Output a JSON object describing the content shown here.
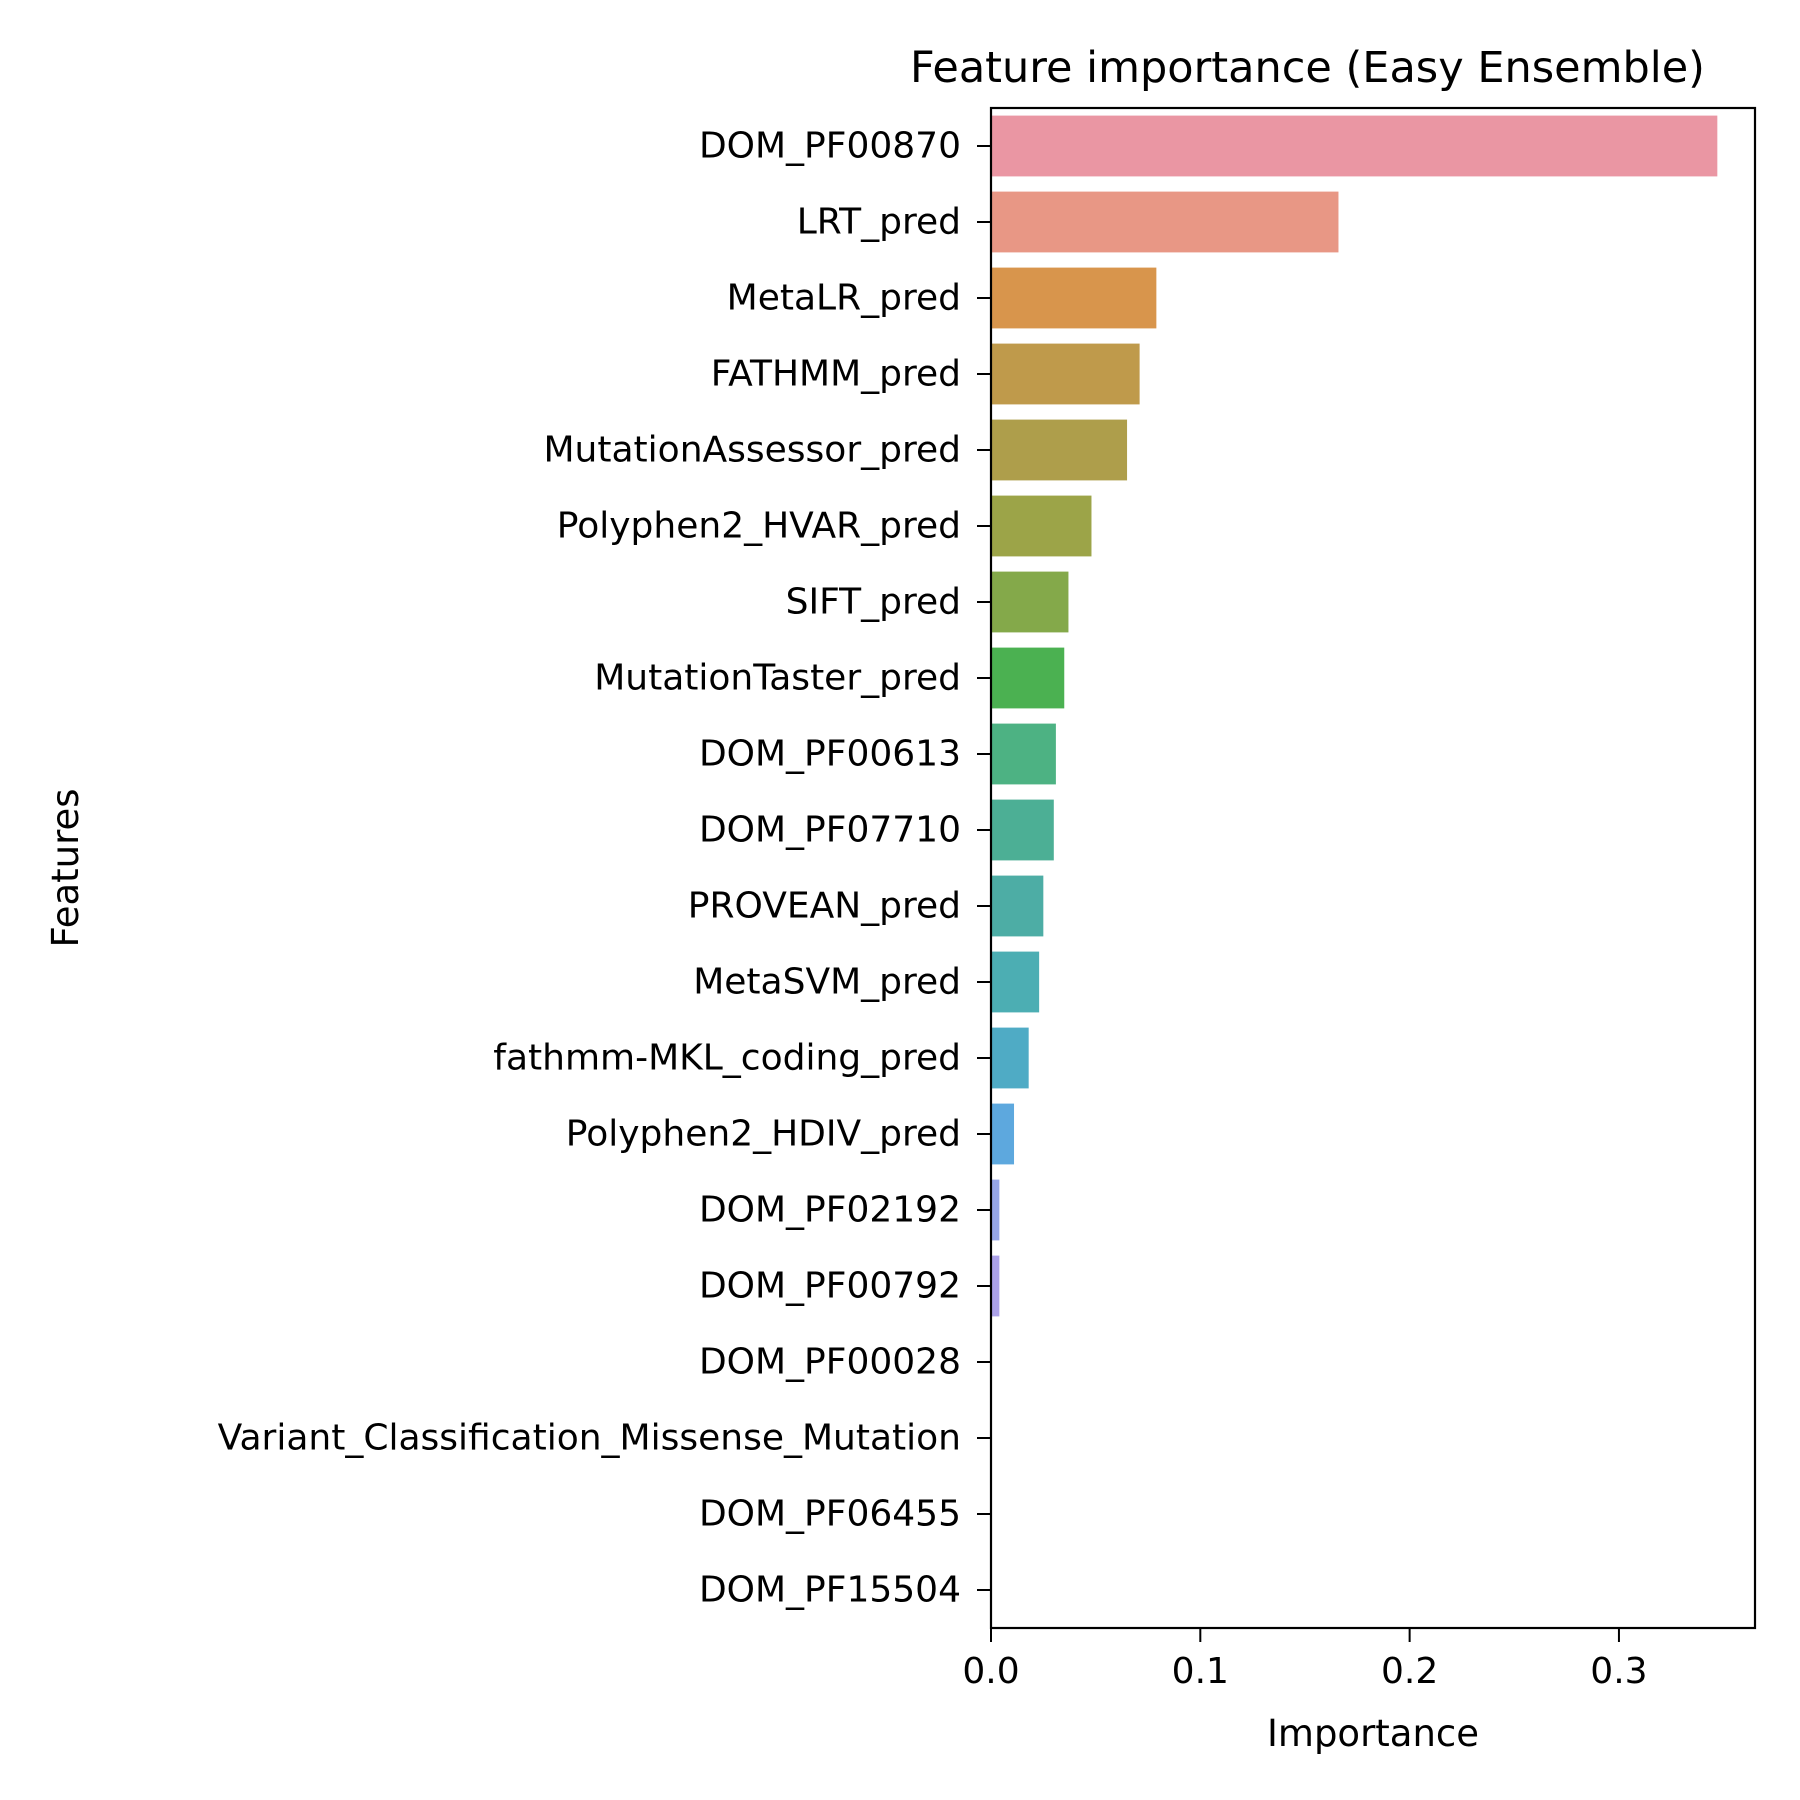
{
  "chart_data": {
    "type": "bar",
    "orientation": "horizontal",
    "title": "Feature importance (Easy Ensemble)",
    "xlabel": "Importance",
    "ylabel": "Features",
    "xlim": [
      0,
      0.365
    ],
    "xticks": [
      0.0,
      0.1,
      0.2,
      0.3
    ],
    "xtick_labels": [
      "0.0",
      "0.1",
      "0.2",
      "0.3"
    ],
    "grid": false,
    "legend": "none",
    "categories": [
      "DOM_PF00870",
      "LRT_pred",
      "MetaLR_pred",
      "FATHMM_pred",
      "MutationAssessor_pred",
      "Polyphen2_HVAR_pred",
      "SIFT_pred",
      "MutationTaster_pred",
      "DOM_PF00613",
      "DOM_PF07710",
      "PROVEAN_pred",
      "MetaSVM_pred",
      "fathmm-MKL_coding_pred",
      "Polyphen2_HDIV_pred",
      "DOM_PF02192",
      "DOM_PF00792",
      "DOM_PF00028",
      "Variant_Classification_Missense_Mutation",
      "DOM_PF06455",
      "DOM_PF15504"
    ],
    "values": [
      0.347,
      0.166,
      0.079,
      0.071,
      0.065,
      0.048,
      0.037,
      0.035,
      0.031,
      0.03,
      0.025,
      0.023,
      0.018,
      0.011,
      0.004,
      0.004,
      0.0,
      0.0,
      0.0,
      0.0
    ],
    "colors": [
      "#ea96a3",
      "#e89785",
      "#d8954c",
      "#bf9a4b",
      "#ae9e4b",
      "#9ca448",
      "#84a94a",
      "#4bb151",
      "#4db283",
      "#4caf95",
      "#4dada5",
      "#4caeb3",
      "#4fabc5",
      "#5da8de",
      "#95a5e6",
      "#aba1e8",
      "#c096e5",
      "#d98fe0",
      "#e98fc8",
      "#ec92b4"
    ]
  }
}
